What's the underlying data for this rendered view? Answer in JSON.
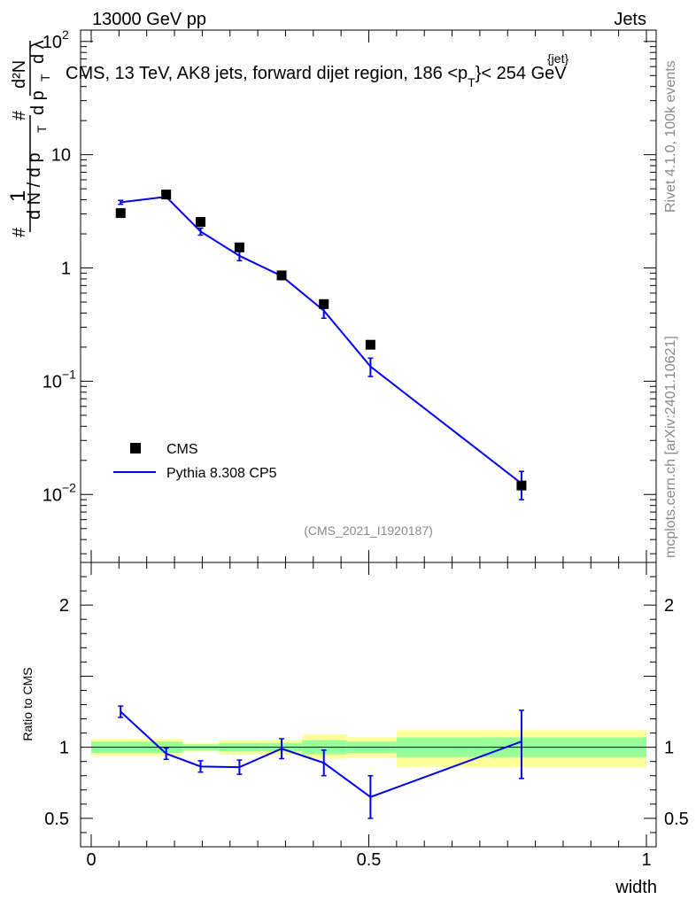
{
  "header": {
    "left": "13000 GeV pp",
    "right": "Jets"
  },
  "side": {
    "rivet": "Rivet 4.1.0,  100k events",
    "mcplots": "mcplots.cern.ch [arXiv:2401.10621]"
  },
  "main": {
    "title": "CMS, 13 TeV, AK8 jets, forward dijet region, 186 <p",
    "title_sup": "{jet}",
    "title_sub": "T",
    "title_tail": "}< 254 GeV",
    "analysis_id": "(CMS_2021_I1920187)",
    "ylabel": {
      "hash": "#",
      "one": "1",
      "dN_dpT": "d N / d p",
      "T": "T",
      "num": "d²N",
      "den_d": "d p",
      "den_lambda": "d λ"
    }
  },
  "legend": {
    "data_label": "CMS",
    "mc_label": "Pythia 8.308 CP5"
  },
  "ratio": {
    "ylabel": "Ratio to CMS"
  },
  "colors": {
    "mc": "#0000ee",
    "band_inner": "#99ff99",
    "band_outer": "#ffff99",
    "data": "#000000"
  },
  "chart_data": {
    "type": "scatter",
    "title": "CMS, 13 TeV, AK8 jets, forward dijet region, 186 < pT{jet} < 254 GeV",
    "xlabel": "width",
    "xlim": [
      0,
      1
    ],
    "main": {
      "yscale": "log",
      "ylim": [
        0.0025,
        120
      ],
      "ticks": [
        {
          "value": 100,
          "mant": "10",
          "exp": "2"
        },
        {
          "value": 10,
          "mant": "10",
          "exp": ""
        },
        {
          "value": 1,
          "mant": "1",
          "exp": ""
        },
        {
          "value": 0.1,
          "mant": "10",
          "exp": "−1"
        },
        {
          "value": 0.01,
          "mant": "10",
          "exp": "−2"
        }
      ],
      "series": [
        {
          "name": "CMS",
          "style": "markers",
          "x": [
            0.053,
            0.135,
            0.197,
            0.267,
            0.343,
            0.419,
            0.503,
            0.775
          ],
          "y": [
            3.05,
            4.45,
            2.55,
            1.52,
            0.86,
            0.48,
            0.21,
            0.012
          ]
        },
        {
          "name": "Pythia 8.308 CP5",
          "style": "line",
          "x": [
            0.053,
            0.135,
            0.197,
            0.267,
            0.343,
            0.419,
            0.503,
            0.775
          ],
          "y": [
            3.8,
            4.25,
            2.1,
            1.28,
            0.85,
            0.42,
            0.135,
            0.0125
          ],
          "yerr_lo": [
            0.15,
            0.15,
            0.15,
            0.12,
            0.06,
            0.06,
            0.025,
            0.0035
          ],
          "yerr_hi": [
            0.15,
            0.15,
            0.15,
            0.12,
            0.06,
            0.06,
            0.025,
            0.0035
          ]
        }
      ]
    },
    "ratio": {
      "ylim": [
        0.3,
        2.3
      ],
      "ticks": [
        {
          "value": 2,
          "label": "2"
        },
        {
          "value": 1,
          "label": "1"
        },
        {
          "value": 0.5,
          "label": "0.5"
        }
      ],
      "x": [
        0.053,
        0.135,
        0.197,
        0.267,
        0.343,
        0.419,
        0.503,
        0.775
      ],
      "y": [
        1.25,
        0.955,
        0.865,
        0.86,
        0.99,
        0.89,
        0.65,
        1.04
      ],
      "yerr_lo": [
        0.04,
        0.04,
        0.04,
        0.05,
        0.07,
        0.09,
        0.15,
        0.26
      ],
      "yerr_hi": [
        0.04,
        0.04,
        0.04,
        0.05,
        0.07,
        0.09,
        0.15,
        0.22
      ],
      "bands": [
        {
          "x0": 0.0,
          "x1": 0.165,
          "inner": [
            0.96,
            1.04
          ],
          "outer": [
            0.94,
            1.06
          ]
        },
        {
          "x0": 0.165,
          "x1": 0.23,
          "inner": [
            0.98,
            1.02
          ],
          "outer": [
            0.97,
            1.03
          ]
        },
        {
          "x0": 0.23,
          "x1": 0.305,
          "inner": [
            0.97,
            1.03
          ],
          "outer": [
            0.95,
            1.05
          ]
        },
        {
          "x0": 0.305,
          "x1": 0.38,
          "inner": [
            0.97,
            1.03
          ],
          "outer": [
            0.95,
            1.05
          ]
        },
        {
          "x0": 0.38,
          "x1": 0.46,
          "inner": [
            0.95,
            1.05
          ],
          "outer": [
            0.92,
            1.09
          ]
        },
        {
          "x0": 0.46,
          "x1": 0.55,
          "inner": [
            0.96,
            1.04
          ],
          "outer": [
            0.93,
            1.07
          ]
        },
        {
          "x0": 0.55,
          "x1": 1.0,
          "inner": [
            0.93,
            1.07
          ],
          "outer": [
            0.86,
            1.12
          ]
        }
      ]
    },
    "xticks": [
      {
        "value": 0,
        "label": "0"
      },
      {
        "value": 0.5,
        "label": "0.5"
      },
      {
        "value": 1,
        "label": "1"
      }
    ]
  }
}
